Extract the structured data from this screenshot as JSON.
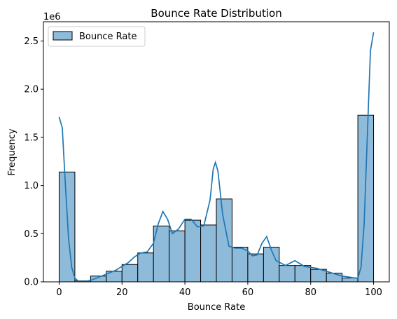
{
  "chart_data": {
    "type": "bar",
    "title": "Bounce Rate Distribution",
    "xlabel": "Bounce Rate",
    "ylabel": "Frequency",
    "y_scale_label": "1e6",
    "xlim": [
      -5,
      105
    ],
    "ylim": [
      0,
      2.7
    ],
    "x_ticks": [
      0,
      20,
      40,
      60,
      80,
      100
    ],
    "y_ticks": [
      0.0,
      0.5,
      1.0,
      1.5,
      2.0,
      2.5
    ],
    "x_tick_labels": [
      "0",
      "20",
      "40",
      "60",
      "80",
      "100"
    ],
    "y_tick_labels": [
      "0.0",
      "0.5",
      "1.0",
      "1.5",
      "2.0",
      "2.5"
    ],
    "bin_width": 5,
    "bin_starts": [
      0,
      5,
      10,
      15,
      20,
      25,
      30,
      35,
      40,
      45,
      50,
      55,
      60,
      65,
      70,
      75,
      80,
      85,
      90,
      95
    ],
    "series": [
      {
        "name": "Bounce Rate",
        "values": [
          1.14,
          0.01,
          0.06,
          0.11,
          0.18,
          0.3,
          0.58,
          0.53,
          0.64,
          0.59,
          0.86,
          0.36,
          0.29,
          0.36,
          0.17,
          0.17,
          0.13,
          0.09,
          0.04,
          1.73
        ]
      }
    ],
    "kde": {
      "x": [
        0,
        1,
        2,
        3,
        4,
        5,
        6,
        7,
        8,
        10,
        12,
        15,
        18,
        20,
        22,
        24,
        26,
        28,
        30,
        31.5,
        33,
        34.5,
        36,
        38,
        40,
        42,
        44,
        46,
        48,
        49,
        49.7,
        50.5,
        52,
        54,
        56,
        58,
        60,
        61.5,
        63,
        64.5,
        66,
        67.5,
        69,
        72,
        75,
        78,
        80,
        82,
        84,
        86,
        88,
        90,
        92,
        94,
        95,
        96,
        97,
        98,
        99,
        100
      ],
      "y": [
        1.71,
        1.6,
        1.0,
        0.45,
        0.15,
        0.04,
        0.01,
        0.005,
        0.005,
        0.015,
        0.04,
        0.08,
        0.12,
        0.16,
        0.2,
        0.26,
        0.3,
        0.31,
        0.4,
        0.6,
        0.73,
        0.65,
        0.5,
        0.55,
        0.65,
        0.65,
        0.57,
        0.58,
        0.85,
        1.17,
        1.24,
        1.15,
        0.7,
        0.37,
        0.35,
        0.35,
        0.32,
        0.27,
        0.28,
        0.4,
        0.47,
        0.33,
        0.22,
        0.17,
        0.22,
        0.16,
        0.15,
        0.14,
        0.12,
        0.1,
        0.08,
        0.06,
        0.05,
        0.04,
        0.04,
        0.15,
        0.6,
        1.5,
        2.4,
        2.59
      ]
    },
    "colors": {
      "bar_fill": "#8fbbda",
      "bar_edge": "#000000",
      "kde_line": "#1f77b4"
    },
    "grid": false,
    "legend_position": "top-left"
  }
}
